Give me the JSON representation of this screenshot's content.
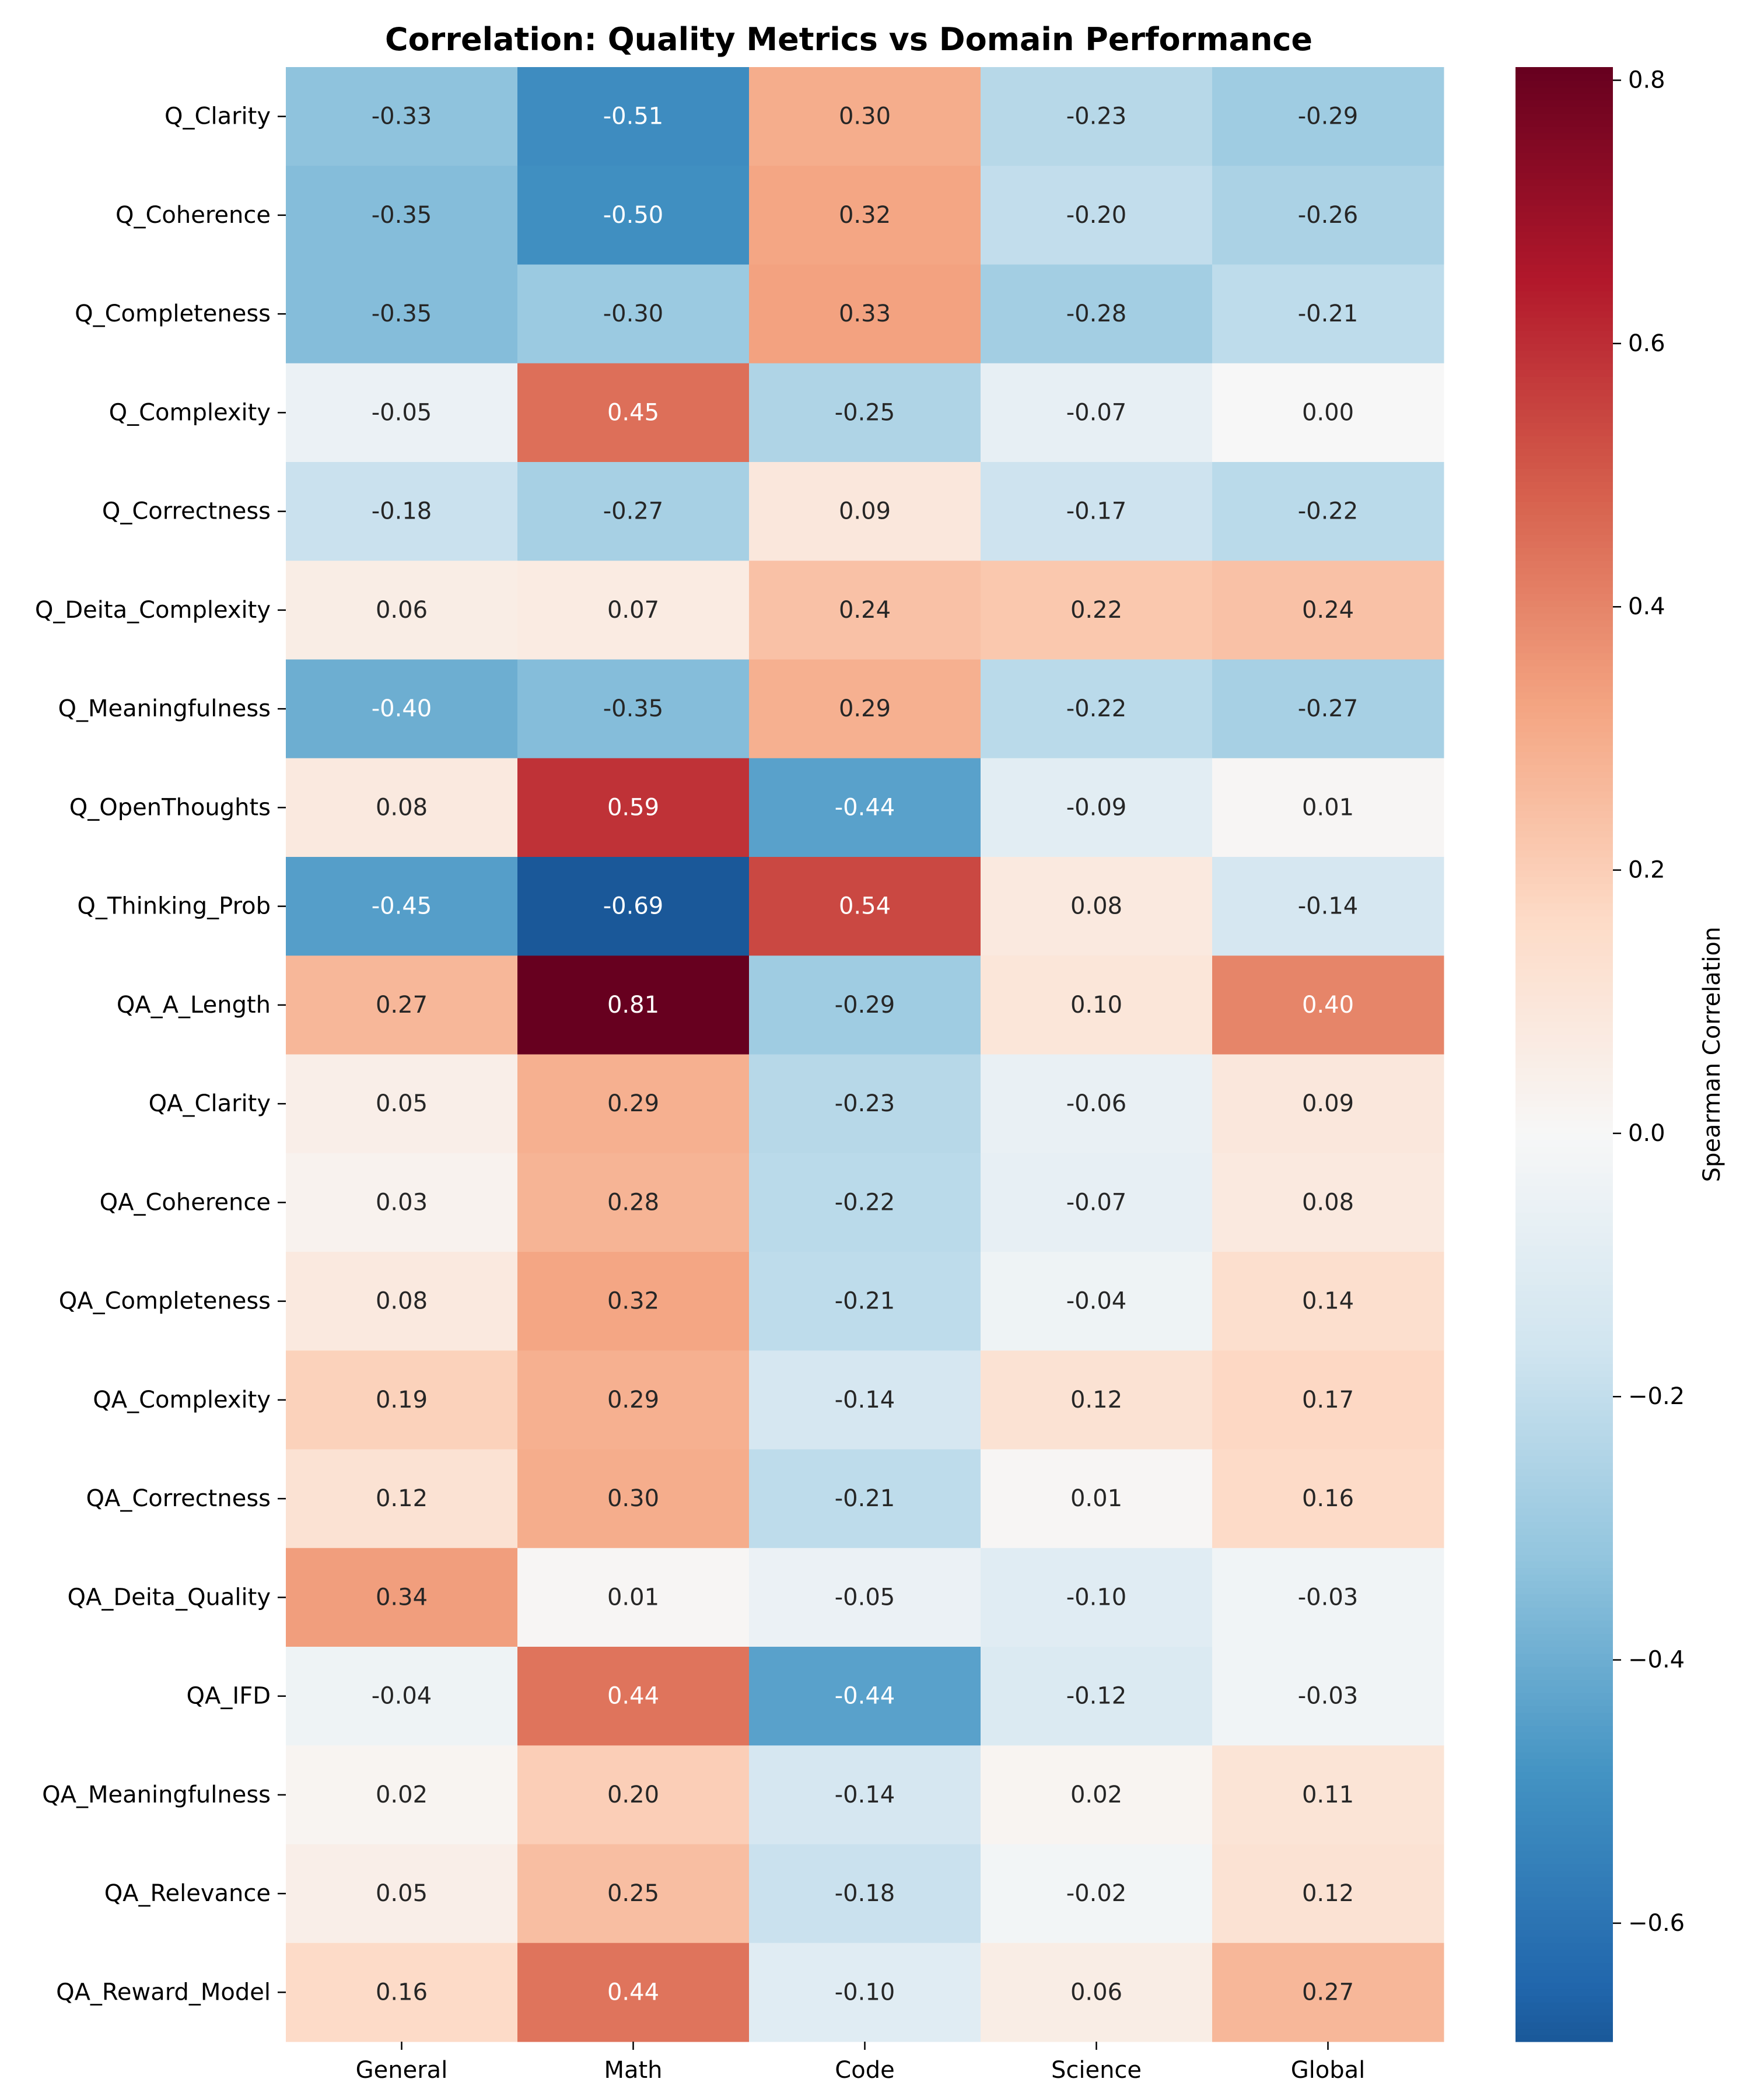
{
  "chart_data": {
    "type": "heatmap",
    "title": "Correlation: Quality Metrics vs Domain Performance",
    "columns": [
      "General",
      "Math",
      "Code",
      "Science",
      "Global"
    ],
    "rows": [
      "Q_Clarity",
      "Q_Coherence",
      "Q_Completeness",
      "Q_Complexity",
      "Q_Correctness",
      "Q_Deita_Complexity",
      "Q_Meaningfulness",
      "Q_OpenThoughts",
      "Q_Thinking_Prob",
      "QA_A_Length",
      "QA_Clarity",
      "QA_Coherence",
      "QA_Completeness",
      "QA_Complexity",
      "QA_Correctness",
      "QA_Deita_Quality",
      "QA_IFD",
      "QA_Meaningfulness",
      "QA_Relevance",
      "QA_Reward_Model"
    ],
    "values": [
      [
        -0.33,
        -0.51,
        0.3,
        -0.23,
        -0.29
      ],
      [
        -0.35,
        -0.5,
        0.32,
        -0.2,
        -0.26
      ],
      [
        -0.35,
        -0.3,
        0.33,
        -0.28,
        -0.21
      ],
      [
        -0.05,
        0.45,
        -0.25,
        -0.07,
        0.0
      ],
      [
        -0.18,
        -0.27,
        0.09,
        -0.17,
        -0.22
      ],
      [
        0.06,
        0.07,
        0.24,
        0.22,
        0.24
      ],
      [
        -0.4,
        -0.35,
        0.29,
        -0.22,
        -0.27
      ],
      [
        0.08,
        0.59,
        -0.44,
        -0.09,
        0.01
      ],
      [
        -0.45,
        -0.69,
        0.54,
        0.08,
        -0.14
      ],
      [
        0.27,
        0.81,
        -0.29,
        0.1,
        0.4
      ],
      [
        0.05,
        0.29,
        -0.23,
        -0.06,
        0.09
      ],
      [
        0.03,
        0.28,
        -0.22,
        -0.07,
        0.08
      ],
      [
        0.08,
        0.32,
        -0.21,
        -0.04,
        0.14
      ],
      [
        0.19,
        0.29,
        -0.14,
        0.12,
        0.17
      ],
      [
        0.12,
        0.3,
        -0.21,
        0.01,
        0.16
      ],
      [
        0.34,
        0.01,
        -0.05,
        -0.1,
        -0.03
      ],
      [
        -0.04,
        0.44,
        -0.44,
        -0.12,
        -0.03
      ],
      [
        0.02,
        0.2,
        -0.14,
        0.02,
        0.11
      ],
      [
        0.05,
        0.25,
        -0.18,
        -0.02,
        0.12
      ],
      [
        0.16,
        0.44,
        -0.1,
        0.06,
        0.27
      ]
    ],
    "colorbar": {
      "label": "Spearman Correlation",
      "range": [
        -0.69,
        0.81
      ],
      "ticks": [
        -0.6,
        -0.4,
        -0.2,
        0.0,
        0.2,
        0.4,
        0.6,
        0.8
      ],
      "tick_labels": [
        "−0.6",
        "−0.4",
        "−0.2",
        "0.0",
        "0.2",
        "0.4",
        "0.6",
        "0.8"
      ],
      "colormap": "RdBu_r",
      "colormap_stops": [
        "#053061",
        "#2166ac",
        "#4393c3",
        "#92c5de",
        "#d1e5f0",
        "#f7f7f7",
        "#fddbc7",
        "#f4a582",
        "#d6604d",
        "#b2182b",
        "#67001f"
      ]
    },
    "grid": false
  }
}
